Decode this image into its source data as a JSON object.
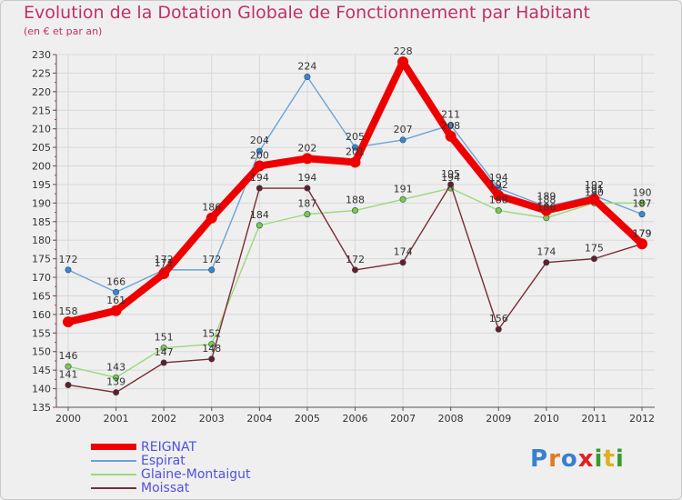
{
  "title": "Evolution de la Dotation Globale de Fonctionnement par Habitant",
  "subtitle": "(en € et par an)",
  "logo_text": "Proxiti",
  "colors": {
    "title": "#c0306a",
    "grid": "#d8d8d8",
    "axis": "#555555",
    "legend_text": "#5050e0"
  },
  "chart_data": {
    "type": "line",
    "title": "Evolution de la Dotation Globale de Fonctionnement par Habitant",
    "subtitle": "(en € et par an)",
    "xlabel": "",
    "ylabel": "",
    "x": [
      "2000",
      "2001",
      "2002",
      "2003",
      "2004",
      "2005",
      "2006",
      "2007",
      "2008",
      "2009",
      "2010",
      "2011",
      "2012"
    ],
    "ylim": [
      135,
      230
    ],
    "yticks": [
      135,
      140,
      145,
      150,
      155,
      160,
      165,
      170,
      175,
      180,
      185,
      190,
      195,
      200,
      205,
      210,
      215,
      220,
      225,
      230
    ],
    "grid": true,
    "legend_position": "bottom-left",
    "series": [
      {
        "name": "REIGNAT",
        "color": "#ee0000",
        "marker": "#ee0000",
        "width": "thick",
        "values": [
          158,
          161,
          171,
          186,
          200,
          202,
          201,
          228,
          208,
          192,
          188,
          191,
          179
        ]
      },
      {
        "name": "Espirat",
        "color": "#6aa3d8",
        "marker": "#3a86d1",
        "width": "thin",
        "values": [
          172,
          166,
          172,
          172,
          204,
          224,
          205,
          207,
          211,
          194,
          189,
          192,
          187
        ]
      },
      {
        "name": "Glaine-Montaigut",
        "color": "#9bd87a",
        "marker": "#7acc44",
        "width": "thin",
        "values": [
          146,
          143,
          151,
          152,
          184,
          187,
          188,
          191,
          194,
          188,
          186,
          190,
          190
        ]
      },
      {
        "name": "Moissat",
        "color": "#7a2b34",
        "marker": "#6a1b24",
        "width": "thin",
        "values": [
          141,
          139,
          147,
          148,
          194,
          194,
          172,
          174,
          195,
          156,
          174,
          175,
          179
        ]
      }
    ],
    "data_labels": [
      {
        "series": "REIGNAT",
        "values": [
          "158",
          "161",
          "171",
          "186",
          "200",
          "202",
          "201",
          "228",
          "208",
          "192",
          "188",
          "191",
          "179"
        ]
      },
      {
        "series": "Espirat",
        "values": [
          "172",
          "166",
          "172",
          "172",
          "204",
          "224",
          "205",
          "207",
          "211",
          "194",
          "189",
          "192",
          "187"
        ]
      },
      {
        "series": "Glaine-Montaigut",
        "values": [
          "146",
          "143",
          "151",
          "152",
          "184",
          "187",
          "188",
          "191",
          "194",
          "188",
          "186",
          "190",
          "190"
        ]
      },
      {
        "series": "Moissat",
        "values": [
          "141",
          "139",
          "147",
          "148",
          "194",
          "194",
          "172",
          "174",
          "195",
          "156",
          "174",
          "175",
          "179"
        ]
      }
    ]
  }
}
